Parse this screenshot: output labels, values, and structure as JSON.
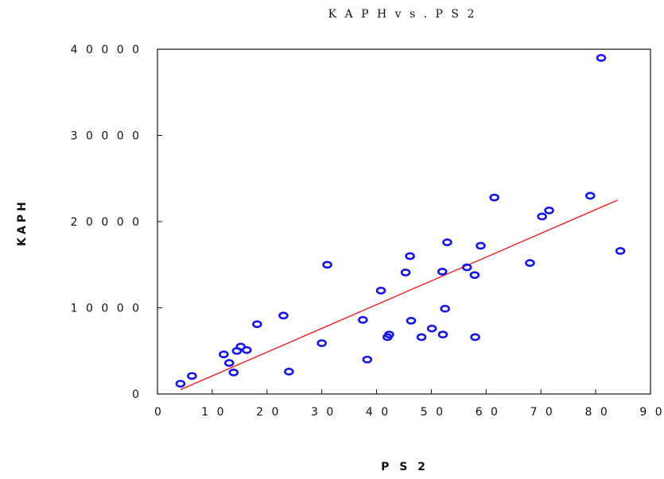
{
  "chart_data": {
    "type": "scatter",
    "title": "K A P H  v s . P S 2",
    "xlabel": "P S 2",
    "ylabel": "KAPH",
    "xlim": [
      0,
      90
    ],
    "ylim": [
      0,
      40000
    ],
    "xticks": [
      0,
      10,
      20,
      30,
      40,
      50,
      60,
      70,
      80,
      90
    ],
    "yticks": [
      0,
      10000,
      20000,
      30000,
      40000
    ],
    "xtick_labels": [
      "0",
      "1 0",
      "2 0",
      "3 0",
      "4 0",
      "5 0",
      "6 0",
      "7 0",
      "8 0",
      "9 0"
    ],
    "ytick_labels": [
      "0",
      "1 0 0 0 0",
      "2 0 0 0 0",
      "3 0 0 0 0",
      "4 0 0 0 0"
    ],
    "grid": false,
    "marker_color": "#1515e6",
    "fit_line_color": "#ee2222",
    "fit_line": {
      "x": [
        4.2,
        84
      ],
      "y": [
        500,
        22500
      ]
    },
    "points": [
      {
        "x": 4.2,
        "y": 1200
      },
      {
        "x": 6.3,
        "y": 2100
      },
      {
        "x": 12.1,
        "y": 4600
      },
      {
        "x": 13.1,
        "y": 3600
      },
      {
        "x": 13.9,
        "y": 2500
      },
      {
        "x": 14.5,
        "y": 5000
      },
      {
        "x": 15.2,
        "y": 5500
      },
      {
        "x": 16.3,
        "y": 5100
      },
      {
        "x": 18.2,
        "y": 8100
      },
      {
        "x": 23.0,
        "y": 9100
      },
      {
        "x": 24.0,
        "y": 2600
      },
      {
        "x": 30.0,
        "y": 5900
      },
      {
        "x": 31.0,
        "y": 15000
      },
      {
        "x": 37.5,
        "y": 8600
      },
      {
        "x": 38.3,
        "y": 4000
      },
      {
        "x": 40.8,
        "y": 12000
      },
      {
        "x": 42.0,
        "y": 6600
      },
      {
        "x": 42.3,
        "y": 6900
      },
      {
        "x": 45.3,
        "y": 14100
      },
      {
        "x": 46.1,
        "y": 16000
      },
      {
        "x": 46.3,
        "y": 8500
      },
      {
        "x": 48.2,
        "y": 6600
      },
      {
        "x": 50.1,
        "y": 7600
      },
      {
        "x": 52.0,
        "y": 14200
      },
      {
        "x": 52.1,
        "y": 6900
      },
      {
        "x": 52.5,
        "y": 9900
      },
      {
        "x": 52.9,
        "y": 17600
      },
      {
        "x": 56.5,
        "y": 14700
      },
      {
        "x": 57.9,
        "y": 13800
      },
      {
        "x": 58.0,
        "y": 6600
      },
      {
        "x": 59.0,
        "y": 17200
      },
      {
        "x": 61.5,
        "y": 22800
      },
      {
        "x": 68.0,
        "y": 15200
      },
      {
        "x": 70.2,
        "y": 20600
      },
      {
        "x": 71.5,
        "y": 21300
      },
      {
        "x": 79.0,
        "y": 23000
      },
      {
        "x": 81.0,
        "y": 39000
      },
      {
        "x": 84.5,
        "y": 16600
      }
    ]
  }
}
